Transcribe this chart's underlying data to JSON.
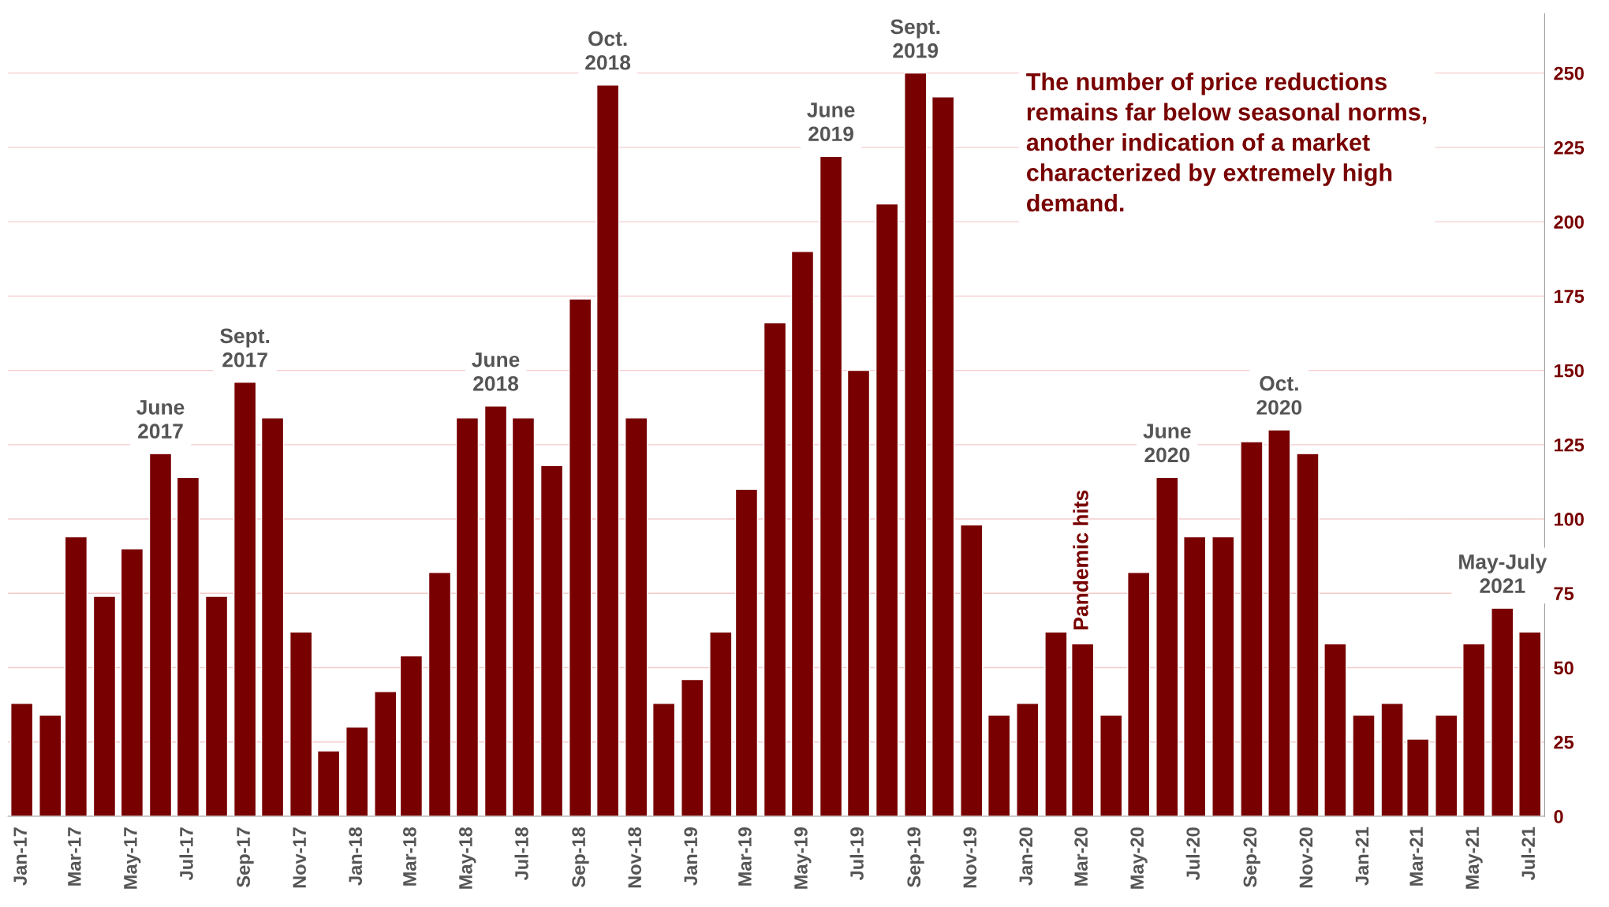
{
  "chart_data": {
    "type": "bar",
    "x": [
      "2017-01",
      "2017-02",
      "2017-03",
      "2017-04",
      "2017-05",
      "2017-06",
      "2017-07",
      "2017-08",
      "2017-09",
      "2017-10",
      "2017-11",
      "2017-12",
      "2018-01",
      "2018-02",
      "2018-03",
      "2018-04",
      "2018-05",
      "2018-06",
      "2018-07",
      "2018-08",
      "2018-09",
      "2018-10",
      "2018-11",
      "2018-12",
      "2019-01",
      "2019-02",
      "2019-03",
      "2019-04",
      "2019-05",
      "2019-06",
      "2019-07",
      "2019-08",
      "2019-09",
      "2019-10",
      "2019-11",
      "2019-12",
      "2020-01",
      "2020-02",
      "2020-03",
      "2020-04",
      "2020-05",
      "2020-06",
      "2020-07",
      "2020-08",
      "2020-09",
      "2020-10",
      "2020-11",
      "2020-12",
      "2021-01",
      "2021-02",
      "2021-03",
      "2021-04",
      "2021-05",
      "2021-06",
      "2021-07"
    ],
    "values": [
      38,
      34,
      94,
      74,
      90,
      122,
      114,
      74,
      146,
      134,
      62,
      22,
      30,
      42,
      54,
      82,
      134,
      138,
      134,
      118,
      174,
      246,
      134,
      38,
      46,
      62,
      110,
      166,
      190,
      222,
      150,
      206,
      250,
      242,
      98,
      34,
      38,
      62,
      58,
      34,
      82,
      114,
      94,
      94,
      126,
      130,
      122,
      58,
      34,
      38,
      26,
      34,
      58,
      70,
      62
    ],
    "color": "#780000",
    "xlim": [
      "2016-12-17",
      "2021-07-17"
    ],
    "xticks": [
      {
        "value": "2017-01",
        "label": "Jan-17"
      },
      {
        "value": "2017-03",
        "label": "Mar-17"
      },
      {
        "value": "2017-05",
        "label": "May-17"
      },
      {
        "value": "2017-07",
        "label": "Jul-17"
      },
      {
        "value": "2017-09",
        "label": "Sep-17"
      },
      {
        "value": "2017-11",
        "label": "Nov-17"
      },
      {
        "value": "2018-01",
        "label": "Jan-18"
      },
      {
        "value": "2018-03",
        "label": "Mar-18"
      },
      {
        "value": "2018-05",
        "label": "May-18"
      },
      {
        "value": "2018-07",
        "label": "Jul-18"
      },
      {
        "value": "2018-09",
        "label": "Sep-18"
      },
      {
        "value": "2018-11",
        "label": "Nov-18"
      },
      {
        "value": "2019-01",
        "label": "Jan-19"
      },
      {
        "value": "2019-03",
        "label": "Mar-19"
      },
      {
        "value": "2019-05",
        "label": "May-19"
      },
      {
        "value": "2019-07",
        "label": "Jul-19"
      },
      {
        "value": "2019-09",
        "label": "Sep-19"
      },
      {
        "value": "2019-11",
        "label": "Nov-19"
      },
      {
        "value": "2020-01",
        "label": "Jan-20"
      },
      {
        "value": "2020-03",
        "label": "Mar-20"
      },
      {
        "value": "2020-05",
        "label": "May-20"
      },
      {
        "value": "2020-07",
        "label": "Jul-20"
      },
      {
        "value": "2020-09",
        "label": "Sep-20"
      },
      {
        "value": "2020-11",
        "label": "Nov-20"
      },
      {
        "value": "2021-01",
        "label": "Jan-21"
      },
      {
        "value": "2021-03",
        "label": "Mar-21"
      },
      {
        "value": "2021-05",
        "label": "May-21"
      },
      {
        "value": "2021-07",
        "label": "Jul-21"
      }
    ],
    "ylim": [
      0,
      270
    ],
    "yticks": [
      0,
      25,
      50,
      75,
      100,
      125,
      150,
      175,
      200,
      225,
      250
    ],
    "grid": "y",
    "annotations": [
      {
        "text": "June\n2017",
        "x": "2017-06",
        "y": 122
      },
      {
        "text": "Sept.\n2017",
        "x": "2017-09",
        "y": 146
      },
      {
        "text": "June\n2018",
        "x": "2018-06",
        "y": 138
      },
      {
        "text": "Oct.\n2018",
        "x": "2018-10",
        "y": 246
      },
      {
        "text": "June\n2019",
        "x": "2019-06",
        "y": 222
      },
      {
        "text": "Sept.\n2019",
        "x": "2019-09",
        "y": 250
      },
      {
        "text": "June\n2020",
        "x": "2020-06",
        "y": 114
      },
      {
        "text": "Oct.\n2020",
        "x": "2020-10",
        "y": 130
      },
      {
        "text": "May-July\n2021",
        "x": "2021-06",
        "y": 70
      },
      {
        "text": "Pandemic hits",
        "x": "2020-03",
        "y": 58
      },
      "The number of price reductions remains far below seasonal norms, another indication of a market characterized by extremely high demand."
    ]
  }
}
